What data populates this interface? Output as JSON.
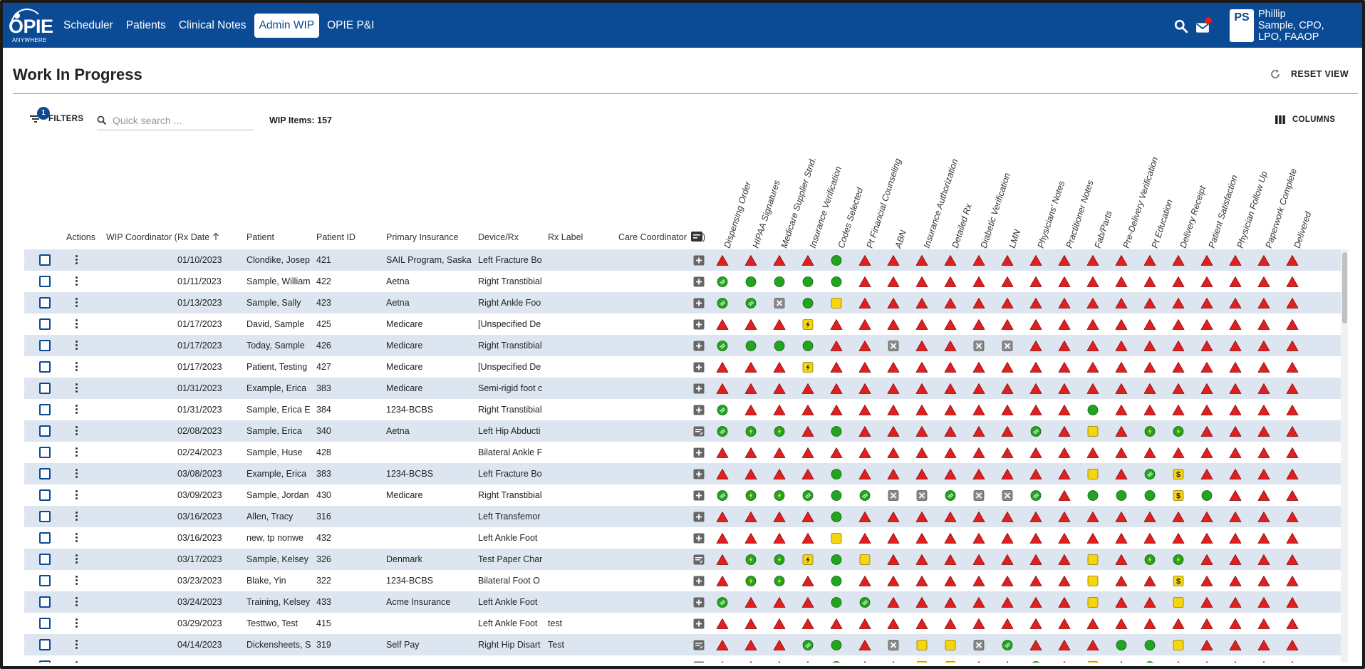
{
  "nav": {
    "logo_text": "OPIE",
    "logo_sub": "ANYWHERE",
    "links": [
      {
        "label": "Scheduler",
        "active": false
      },
      {
        "label": "Patients",
        "active": false
      },
      {
        "label": "Clinical Notes",
        "active": false
      },
      {
        "label": "Admin WIP",
        "active": true
      },
      {
        "label": "OPIE P&I",
        "active": false
      }
    ],
    "user_initials": "PS",
    "user_name_line1": "Phillip",
    "user_name_line2": "Sample, CPO,",
    "user_name_line3": "LPO, FAAOP"
  },
  "page": {
    "title": "Work In Progress",
    "reset_label": "RESET VIEW"
  },
  "toolbar": {
    "filter_badge": "1",
    "filters_label": "FILTERS",
    "search_placeholder": "Quick search ...",
    "wip_count": "WIP Items: 157",
    "columns_label": "COLUMNS"
  },
  "columns": {
    "actions": "Actions",
    "wip_coordinator": "WIP Coordinator (",
    "rx_date": "Rx Date",
    "patient": "Patient",
    "patient_id": "Patient ID",
    "primary_insurance": "Primary Insurance",
    "device_rx": "Device/Rx",
    "rx_label": "Rx Label",
    "care_coordinator": "Care Coordinator",
    "care_coordinator_tail": ")"
  },
  "status_columns": [
    "Dispensing Order",
    "HIPAA Signatures",
    "Medicare Supplier Stnd.",
    "Insurance Verification",
    "Codes Selected",
    "Pt Financial Counseling",
    "ABN",
    "Insurance Authorization",
    "Detailed Rx",
    "Diabetic Verification",
    "LMN",
    "Physicians' Notes",
    "Practitioner Notes",
    "Fab/Parts",
    "Pre-Delivery Verification",
    "Pt Education",
    "Delivery Receipt",
    "Patient Satisfaction",
    "Physician Follow Up",
    "Paperwork Complete",
    "Delivered"
  ],
  "colors": {
    "brand": "#0b4a94",
    "row_alt": "#dde6f0",
    "status_red": "#e01f1f",
    "status_green": "#22a51e",
    "status_yellow": "#f5d50e",
    "status_gray": "#8a8a8a"
  },
  "icon_legend": {
    "T": "red-triangle-icon",
    "G": "green-circle-icon",
    "C": "green-check-circle-icon",
    "L": "green-bolt-circle-icon",
    "Y": "yellow-square-icon",
    "B": "yellow-bolt-icon",
    "D": "yellow-dollar-icon",
    "X": "gray-x-icon"
  },
  "rows": [
    {
      "date": "01/10/2023",
      "patient": "Clondike, Josep",
      "pid": "421",
      "insurance": "SAIL Program, Saska",
      "device": "Left Fracture Bo",
      "rx_label": "",
      "note": "plus",
      "status": "TTTTGTTTTTTTTTTTTTTTT"
    },
    {
      "date": "01/11/2023",
      "patient": "Sample, William",
      "pid": "422",
      "insurance": "Aetna",
      "device": "Right Transtibial",
      "rx_label": "",
      "note": "plus",
      "status": "CGGGGTTTTTTTTTTTTTTTT"
    },
    {
      "date": "01/13/2023",
      "patient": "Sample, Sally",
      "pid": "423",
      "insurance": "Aetna",
      "device": "Right Ankle Foo",
      "rx_label": "",
      "note": "plus",
      "status": "CCXGYTTTTTTTTTTTTTTTT"
    },
    {
      "date": "01/17/2023",
      "patient": "David, Sample",
      "pid": "425",
      "insurance": "Medicare",
      "device": "[Unspecified De",
      "rx_label": "",
      "note": "plus",
      "status": "TTTBTTTTTTTTTTTTTTTTT"
    },
    {
      "date": "01/17/2023",
      "patient": "Today, Sample",
      "pid": "426",
      "insurance": "Medicare",
      "device": "Right Transtibial",
      "rx_label": "",
      "note": "plus",
      "status": "CGGGTTXTTXXTTTTTTTTTT"
    },
    {
      "date": "01/17/2023",
      "patient": "Patient, Testing",
      "pid": "427",
      "insurance": "Medicare",
      "device": "[Unspecified De",
      "rx_label": "",
      "note": "plus",
      "status": "TTTBTTTTTTTTTTTTTTTTT"
    },
    {
      "date": "01/31/2023",
      "patient": "Example, Erica",
      "pid": "383",
      "insurance": "Medicare",
      "device": "Semi-rigid foot c",
      "rx_label": "",
      "note": "plus",
      "status": "TTTTTTTTTTTTTTTTTTTTT"
    },
    {
      "date": "01/31/2023",
      "patient": "Sample, Erica E",
      "pid": "384",
      "insurance": "1234-BCBS",
      "device": "Right Transtibial",
      "rx_label": "",
      "note": "plus",
      "status": "CTTTTTTTTTTTTGTTTTTTT"
    },
    {
      "date": "02/08/2023",
      "patient": "Sample, Erica",
      "pid": "340",
      "insurance": "Aetna",
      "device": "Left Hip Abducti",
      "rx_label": "",
      "note": "notes",
      "status": "CLLTGTTTTTTCTYTLLTTTT"
    },
    {
      "date": "02/24/2023",
      "patient": "Sample, Huse",
      "pid": "428",
      "insurance": "",
      "device": "Bilateral Ankle F",
      "rx_label": "",
      "note": "plus",
      "status": "TTTTTTTTTTTTTTTTTTTTT"
    },
    {
      "date": "03/08/2023",
      "patient": "Example, Erica",
      "pid": "383",
      "insurance": "1234-BCBS",
      "device": "Left Fracture Bo",
      "rx_label": "",
      "note": "plus",
      "status": "TTTTGTTTTTTTTYTCDTTTT"
    },
    {
      "date": "03/09/2023",
      "patient": "Sample, Jordan",
      "pid": "430",
      "insurance": "Medicare",
      "device": "Right Transtibial",
      "rx_label": "",
      "note": "plus",
      "status": "CLLCGCXXCXXCTGGGDGTTT"
    },
    {
      "date": "03/16/2023",
      "patient": "Allen, Tracy",
      "pid": "316",
      "insurance": "",
      "device": "Left Transfemor",
      "rx_label": "",
      "note": "plus",
      "status": "TTTTGTTTTTTTTTTTTTTTT"
    },
    {
      "date": "03/16/2023",
      "patient": "new, tp nonwe",
      "pid": "432",
      "insurance": "",
      "device": "Left Ankle Foot",
      "rx_label": "",
      "note": "plus",
      "status": "TTTTYTTTTTTTTTTTTTTTT"
    },
    {
      "date": "03/17/2023",
      "patient": "Sample, Kelsey",
      "pid": "326",
      "insurance": "Denmark",
      "device": "Test Paper Char",
      "rx_label": "",
      "note": "notes",
      "status": "TLLBGYTTTTTTTYTLLTTTT"
    },
    {
      "date": "03/23/2023",
      "patient": "Blake, Yin",
      "pid": "322",
      "insurance": "1234-BCBS",
      "device": "Bilateral Foot O",
      "rx_label": "",
      "note": "plus",
      "status": "TLLTGTTTTTTTTYTTDTTTT"
    },
    {
      "date": "03/24/2023",
      "patient": "Training, Kelsey",
      "pid": "433",
      "insurance": "Acme Insurance",
      "device": "Left Ankle Foot",
      "rx_label": "",
      "note": "plus",
      "status": "CTTTGCTTTTTTTYTTYTTTT"
    },
    {
      "date": "03/29/2023",
      "patient": "Testtwo, Test",
      "pid": "415",
      "insurance": "",
      "device": "Left Ankle Foot",
      "rx_label": "test",
      "note": "plus",
      "status": "TTTTTTTTTTTTTTTTTTTTT"
    },
    {
      "date": "04/14/2023",
      "patient": "Dickensheets, S",
      "pid": "319",
      "insurance": "Self Pay",
      "device": "Right Hip Disart",
      "rx_label": "Test",
      "note": "notes",
      "status": "TTTCGTXYYXCTTTGGYTTTT"
    },
    {
      "date": "",
      "patient": "",
      "pid": "",
      "insurance": "",
      "device": "",
      "rx_label": "",
      "note": "plus",
      "status": "TTTTGTTYYTTGTYTGTTTTT"
    }
  ]
}
